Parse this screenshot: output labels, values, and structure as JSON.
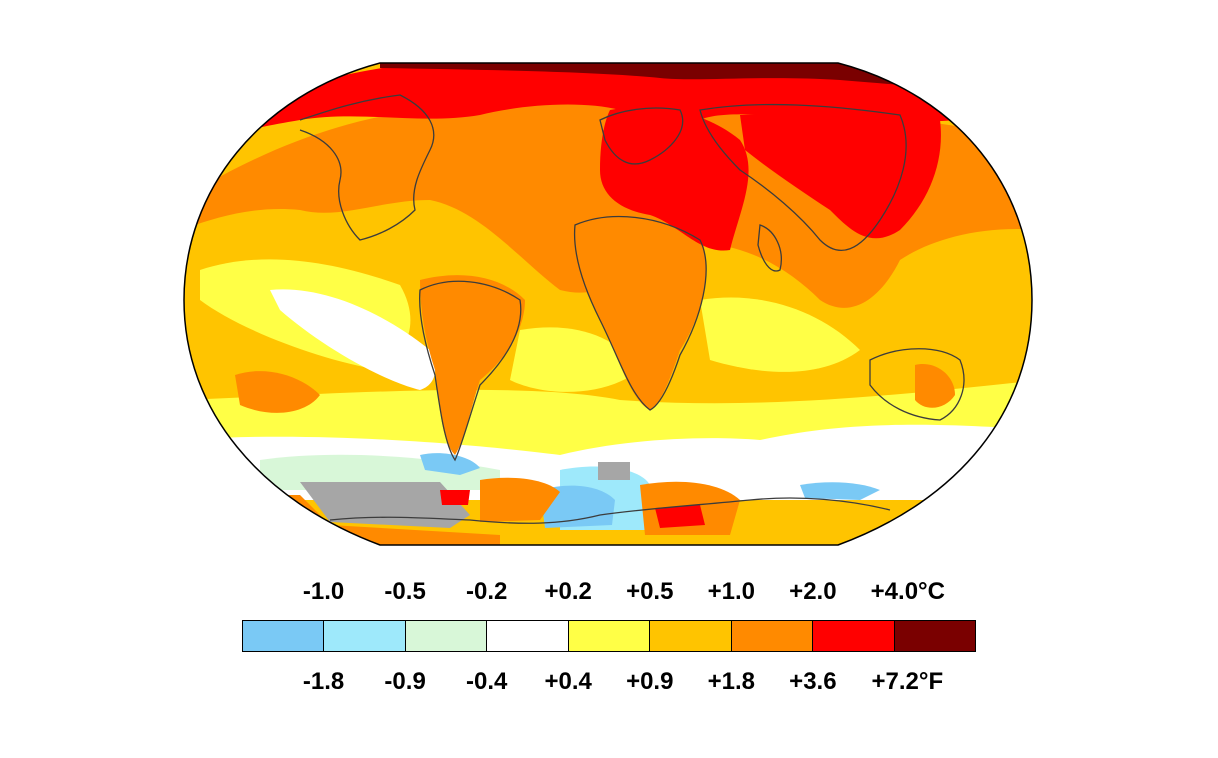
{
  "legend": {
    "colors": [
      "#7ac9f5",
      "#9ee9fb",
      "#d8f7d8",
      "#ffffff",
      "#ffff46",
      "#ffc400",
      "#ff8a00",
      "#ff0000",
      "#7a0000"
    ],
    "celsius_ticks": [
      "-1.0",
      "-0.5",
      "-0.2",
      "+0.2",
      "+0.5",
      "+1.0",
      "+2.0",
      "+4.0°C"
    ],
    "fahrenheit_ticks": [
      "-1.8",
      "-0.9",
      "-0.4",
      "+0.4",
      "+0.9",
      "+1.8",
      "+3.6",
      "+7.2°F"
    ]
  },
  "map_colors": {
    "yellow": "#ffff46",
    "gold": "#ffc400",
    "orange": "#ff8a00",
    "red": "#ff0000",
    "darkred": "#7a0000",
    "white": "#ffffff",
    "lightgreen": "#d8f7d8",
    "cyan": "#9ee9fb",
    "blue": "#7ac9f5",
    "gray": "#a6a6a6",
    "coast": "#3c3c3c"
  }
}
